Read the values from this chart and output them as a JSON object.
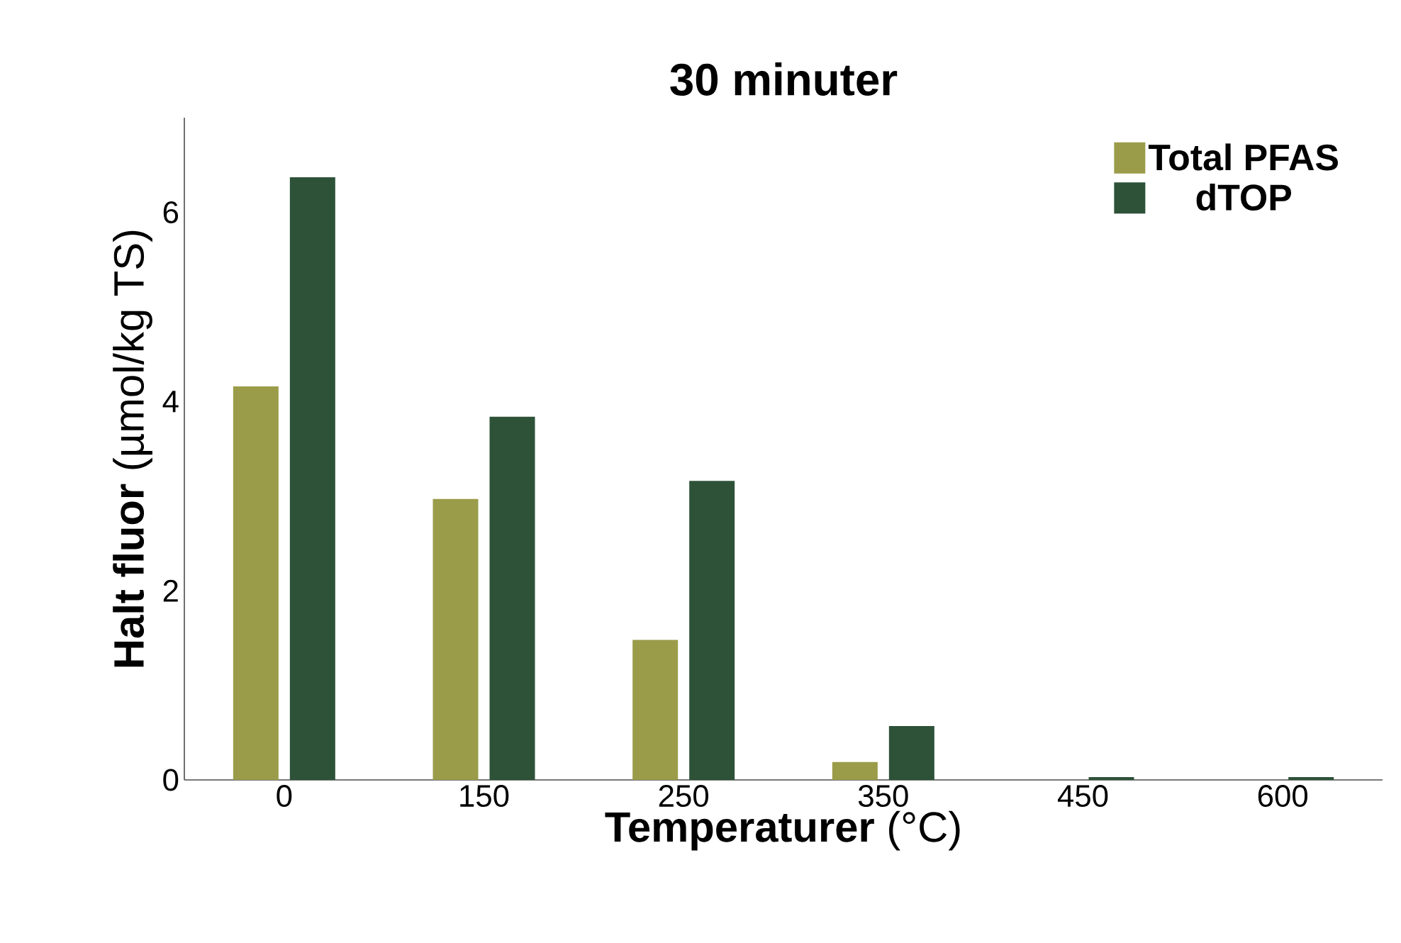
{
  "chart_data": {
    "type": "bar",
    "title": "30 minuter",
    "xlabel": "**Temperaturer** (°C)",
    "ylabel": "**Halt fluor** (µmol/kg TS)",
    "categories": [
      "0",
      "150",
      "250",
      "350",
      "450",
      "600"
    ],
    "series": [
      {
        "name": "Total PFAS",
        "color": "#9a9c4a",
        "values": [
          4.16,
          2.97,
          1.48,
          0.19,
          0,
          0
        ]
      },
      {
        "name": "dTOP",
        "color": "#2d5238",
        "values": [
          6.37,
          3.84,
          3.16,
          0.57,
          0.03,
          0.03
        ]
      }
    ],
    "ylim": [
      0,
      7
    ],
    "yticks": [
      0,
      2,
      4,
      6
    ],
    "legend": "top right",
    "grid": false
  }
}
